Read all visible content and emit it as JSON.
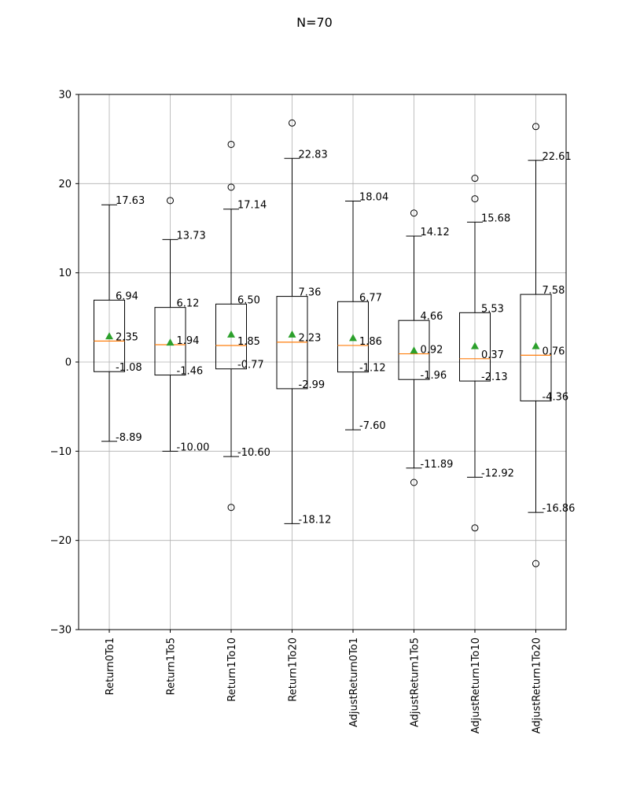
{
  "chart_data": {
    "type": "boxplot",
    "title": "N=70",
    "xlabel": "",
    "ylabel": "",
    "ylim": [
      -30,
      30
    ],
    "yticks": [
      -30,
      -20,
      -10,
      0,
      10,
      20,
      30
    ],
    "grid": true,
    "categories": [
      "Return0To1",
      "Return1To5",
      "Return1To10",
      "Return1To20",
      "AdjustReturn0To1",
      "AdjustReturn1To5",
      "AdjustReturn1To10",
      "AdjustReturn1To20"
    ],
    "boxes": [
      {
        "whisker_high": 17.63,
        "q3": 6.94,
        "median": 2.35,
        "q1": -1.08,
        "whisker_low": -8.89,
        "mean": 2.9,
        "outliers": [],
        "labels": {
          "whisker_high": "17.63",
          "q3": "6.94",
          "median": "2.35",
          "q1": "-1.08",
          "whisker_low": "-8.89"
        }
      },
      {
        "whisker_high": 13.73,
        "q3": 6.12,
        "median": 1.94,
        "q1": -1.46,
        "whisker_low": -10.0,
        "mean": 2.2,
        "outliers": [
          18.1
        ],
        "labels": {
          "whisker_high": "13.73",
          "q3": "6.12",
          "median": "1.94",
          "q1": "-1.46",
          "whisker_low": "-10.00"
        }
      },
      {
        "whisker_high": 17.14,
        "q3": 6.5,
        "median": 1.85,
        "q1": -0.77,
        "whisker_low": -10.6,
        "mean": 3.1,
        "outliers": [
          24.4,
          19.6,
          -16.3
        ],
        "labels": {
          "whisker_high": "17.14",
          "q3": "6.50",
          "median": "1.85",
          "q1": "-0.77",
          "whisker_low": "-10.60"
        }
      },
      {
        "whisker_high": 22.83,
        "q3": 7.36,
        "median": 2.23,
        "q1": -2.99,
        "whisker_low": -18.12,
        "mean": 3.1,
        "outliers": [
          26.8
        ],
        "labels": {
          "whisker_high": "22.83",
          "q3": "7.36",
          "median": "2.23",
          "q1": "-2.99",
          "whisker_low": "-18.12"
        }
      },
      {
        "whisker_high": 18.04,
        "q3": 6.77,
        "median": 1.86,
        "q1": -1.12,
        "whisker_low": -7.6,
        "mean": 2.7,
        "outliers": [],
        "labels": {
          "whisker_high": "18.04",
          "q3": "6.77",
          "median": "1.86",
          "q1": "-1.12",
          "whisker_low": "-7.60"
        }
      },
      {
        "whisker_high": 14.12,
        "q3": 4.66,
        "median": 0.92,
        "q1": -1.96,
        "whisker_low": -11.89,
        "mean": 1.3,
        "outliers": [
          16.7,
          -13.5
        ],
        "labels": {
          "whisker_high": "14.12",
          "q3": "4.66",
          "median": "0.92",
          "q1": "-1.96",
          "whisker_low": "-11.89"
        }
      },
      {
        "whisker_high": 15.68,
        "q3": 5.53,
        "median": 0.37,
        "q1": -2.13,
        "whisker_low": -12.92,
        "mean": 1.8,
        "outliers": [
          20.6,
          18.3,
          -18.6
        ],
        "labels": {
          "whisker_high": "15.68",
          "q3": "5.53",
          "median": "0.37",
          "q1": "-2.13",
          "whisker_low": "-12.92"
        }
      },
      {
        "whisker_high": 22.61,
        "q3": 7.58,
        "median": 0.76,
        "q1": -4.36,
        "whisker_low": -16.86,
        "mean": 1.8,
        "outliers": [
          26.4,
          -22.6
        ],
        "labels": {
          "whisker_high": "22.61",
          "q3": "7.58",
          "median": "0.76",
          "q1": "-4.36",
          "whisker_low": "-16.86"
        }
      }
    ],
    "colors": {
      "box": "#000000",
      "median": "#ff7f0e",
      "mean": "#2ca02c",
      "grid": "#b0b0b0"
    }
  }
}
